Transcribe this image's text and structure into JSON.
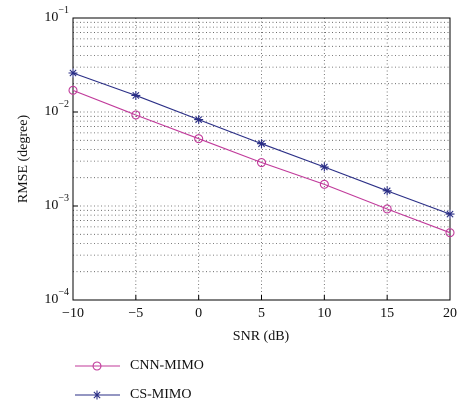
{
  "chart_data": {
    "type": "line",
    "x_label": "SNR (dB)",
    "y_label": "RMSE (degree)",
    "x": [
      -10,
      -5,
      0,
      5,
      10,
      15,
      20
    ],
    "series": [
      {
        "name": "CNN-MIMO",
        "color": "#c0399a",
        "marker": "circle",
        "values": [
          0.017,
          0.0093,
          0.0052,
          0.0029,
          0.0017,
          0.00093,
          0.00052
        ]
      },
      {
        "name": "CS-MIMO",
        "color": "#2a2e86",
        "marker": "star",
        "values": [
          0.026,
          0.015,
          0.0083,
          0.0046,
          0.0026,
          0.00145,
          0.00082
        ]
      }
    ],
    "xlim": [
      -10,
      20
    ],
    "xticks": [
      {
        "value": -10,
        "label": "−10"
      },
      {
        "value": -5,
        "label": "−5"
      },
      0,
      5,
      10,
      15,
      20
    ],
    "ylim": [
      0.0001,
      0.1
    ],
    "ylog": true,
    "yticks": [
      {
        "value": 0.0001,
        "label": "10−4"
      },
      {
        "value": 0.001,
        "label": "10−3"
      },
      {
        "value": 0.01,
        "label": "10−2"
      },
      {
        "value": 0.1,
        "label": "10−1"
      }
    ],
    "grid": true,
    "legend": "below"
  }
}
